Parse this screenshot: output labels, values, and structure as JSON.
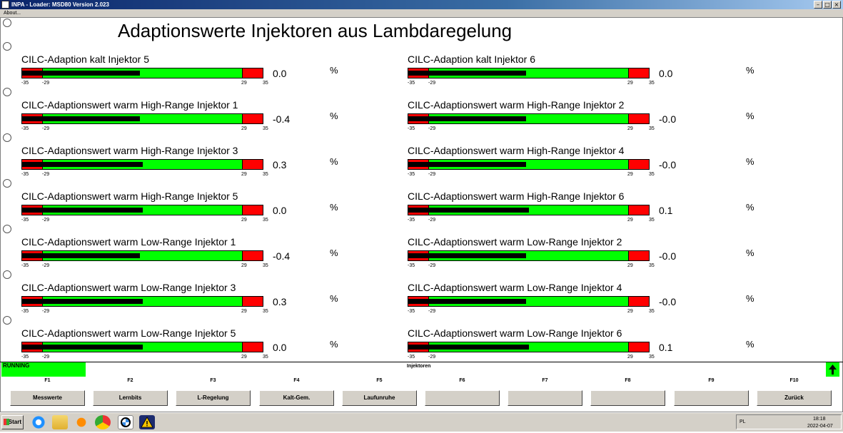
{
  "window": {
    "title": "INPA - Loader: MSD80 Version 2.023",
    "menu": "About..."
  },
  "page_title": "Adaptionswerte Injektoren aus Lambdaregelung",
  "scale": {
    "min": "-35",
    "low": "-29",
    "high": "29",
    "max": "35",
    "min_value": -35,
    "max_value": 35
  },
  "unit": "%",
  "gauges": [
    {
      "label": "CILC-Adaption kalt Injektor 5",
      "value": "0.0",
      "fill_fraction": 0.49
    },
    {
      "label": "CILC-Adaption kalt Injektor 6",
      "value": "0.0",
      "fill_fraction": 0.49
    },
    {
      "label": "CILC-Adaptionswert warm High-Range Injektor 1",
      "value": "-0.4",
      "fill_fraction": 0.49
    },
    {
      "label": "CILC-Adaptionswert warm High-Range Injektor 2",
      "value": "-0.0",
      "fill_fraction": 0.49
    },
    {
      "label": "CILC-Adaptionswert warm High-Range Injektor 3",
      "value": "0.3",
      "fill_fraction": 0.5
    },
    {
      "label": "CILC-Adaptionswert warm High-Range Injektor 4",
      "value": "-0.0",
      "fill_fraction": 0.49
    },
    {
      "label": "CILC-Adaptionswert warm High-Range Injektor 5",
      "value": "0.0",
      "fill_fraction": 0.5
    },
    {
      "label": "CILC-Adaptionswert warm High-Range Injektor 6",
      "value": "0.1",
      "fill_fraction": 0.5
    },
    {
      "label": "CILC-Adaptionswert warm Low-Range Injektor 1",
      "value": "-0.4",
      "fill_fraction": 0.49
    },
    {
      "label": "CILC-Adaptionswert warm Low-Range Injektor 2",
      "value": "-0.0",
      "fill_fraction": 0.49
    },
    {
      "label": "CILC-Adaptionswert warm Low-Range Injektor 3",
      "value": "0.3",
      "fill_fraction": 0.5
    },
    {
      "label": "CILC-Adaptionswert warm Low-Range Injektor 4",
      "value": "-0.0",
      "fill_fraction": 0.49
    },
    {
      "label": "CILC-Adaptionswert warm Low-Range Injektor 5",
      "value": "0.0",
      "fill_fraction": 0.5
    },
    {
      "label": "CILC-Adaptionswert warm Low-Range Injektor 6",
      "value": "0.1",
      "fill_fraction": 0.5
    }
  ],
  "status": {
    "state": "RUNNING",
    "section": "Injektoren"
  },
  "fkeys": [
    {
      "key": "F1",
      "label": "Messwerte"
    },
    {
      "key": "F2",
      "label": "Lernbits"
    },
    {
      "key": "F3",
      "label": "L-Regelung"
    },
    {
      "key": "F4",
      "label": "Kalt-Gem."
    },
    {
      "key": "F5",
      "label": "Laufunruhe"
    },
    {
      "key": "F6",
      "label": ""
    },
    {
      "key": "F7",
      "label": ""
    },
    {
      "key": "F8",
      "label": ""
    },
    {
      "key": "F9",
      "label": ""
    },
    {
      "key": "F10",
      "label": "Zurück"
    }
  ],
  "taskbar": {
    "start": "Start",
    "language": "PL",
    "time": "18:18",
    "date": "2022-04-07",
    "icons": [
      "ie-icon",
      "folder-icon",
      "media-player-icon",
      "chrome-icon",
      "bmw-icon",
      "warning-icon"
    ]
  },
  "colors": {
    "ok": "#00ff00",
    "limit": "#ff0000",
    "fill": "#000000",
    "titlebar": "#0a246a"
  }
}
